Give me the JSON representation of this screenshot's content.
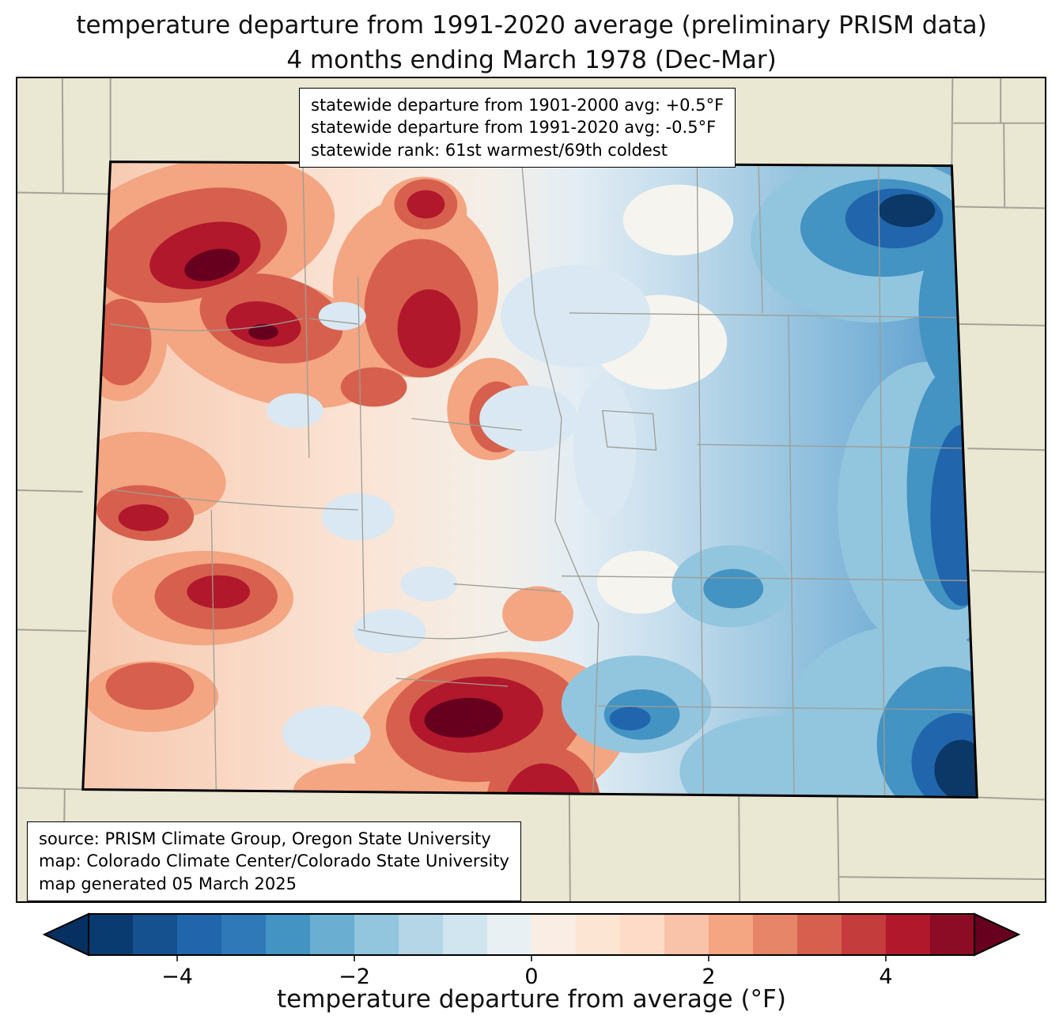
{
  "title": {
    "line1": "temperature departure from 1991-2020 average (preliminary PRISM data)",
    "line2": "4 months ending March 1978 (Dec-Mar)"
  },
  "info_box": {
    "lines": [
      "statewide departure from 1901-2000 avg: +0.5°F",
      "statewide departure from 1991-2020 avg: -0.5°F",
      "statewide rank: 61st warmest/69th coldest"
    ]
  },
  "source_box": {
    "lines": [
      "source: PRISM Climate Group, Oregon State University",
      "map: Colorado Climate Center/Colorado State University",
      "map generated 05 March 2025"
    ]
  },
  "map": {
    "region": "Colorado",
    "background_color": "#eae7d2",
    "border_color": "#000000",
    "county_line_color": "#9d9d94"
  },
  "colorbar": {
    "label": "temperature departure from average (°F)",
    "range": [
      -5,
      5
    ],
    "ticks": [
      {
        "value": -4,
        "label": "−4"
      },
      {
        "value": -2,
        "label": "−2"
      },
      {
        "value": 0,
        "label": "0"
      },
      {
        "value": 2,
        "label": "2"
      },
      {
        "value": 4,
        "label": "4"
      }
    ],
    "arrow_left_color": "#053061",
    "arrow_right_color": "#67001f",
    "segments": [
      "#0a3b70",
      "#15508f",
      "#2166ac",
      "#3079b8",
      "#4393c3",
      "#6aaed1",
      "#92c5de",
      "#b4d6e7",
      "#d1e5f0",
      "#e8f0f3",
      "#f9ede4",
      "#fde5d3",
      "#fddbc7",
      "#f9c3a9",
      "#f4a582",
      "#e68568",
      "#d6604d",
      "#c43c3c",
      "#b2182b",
      "#8c0c25"
    ]
  }
}
